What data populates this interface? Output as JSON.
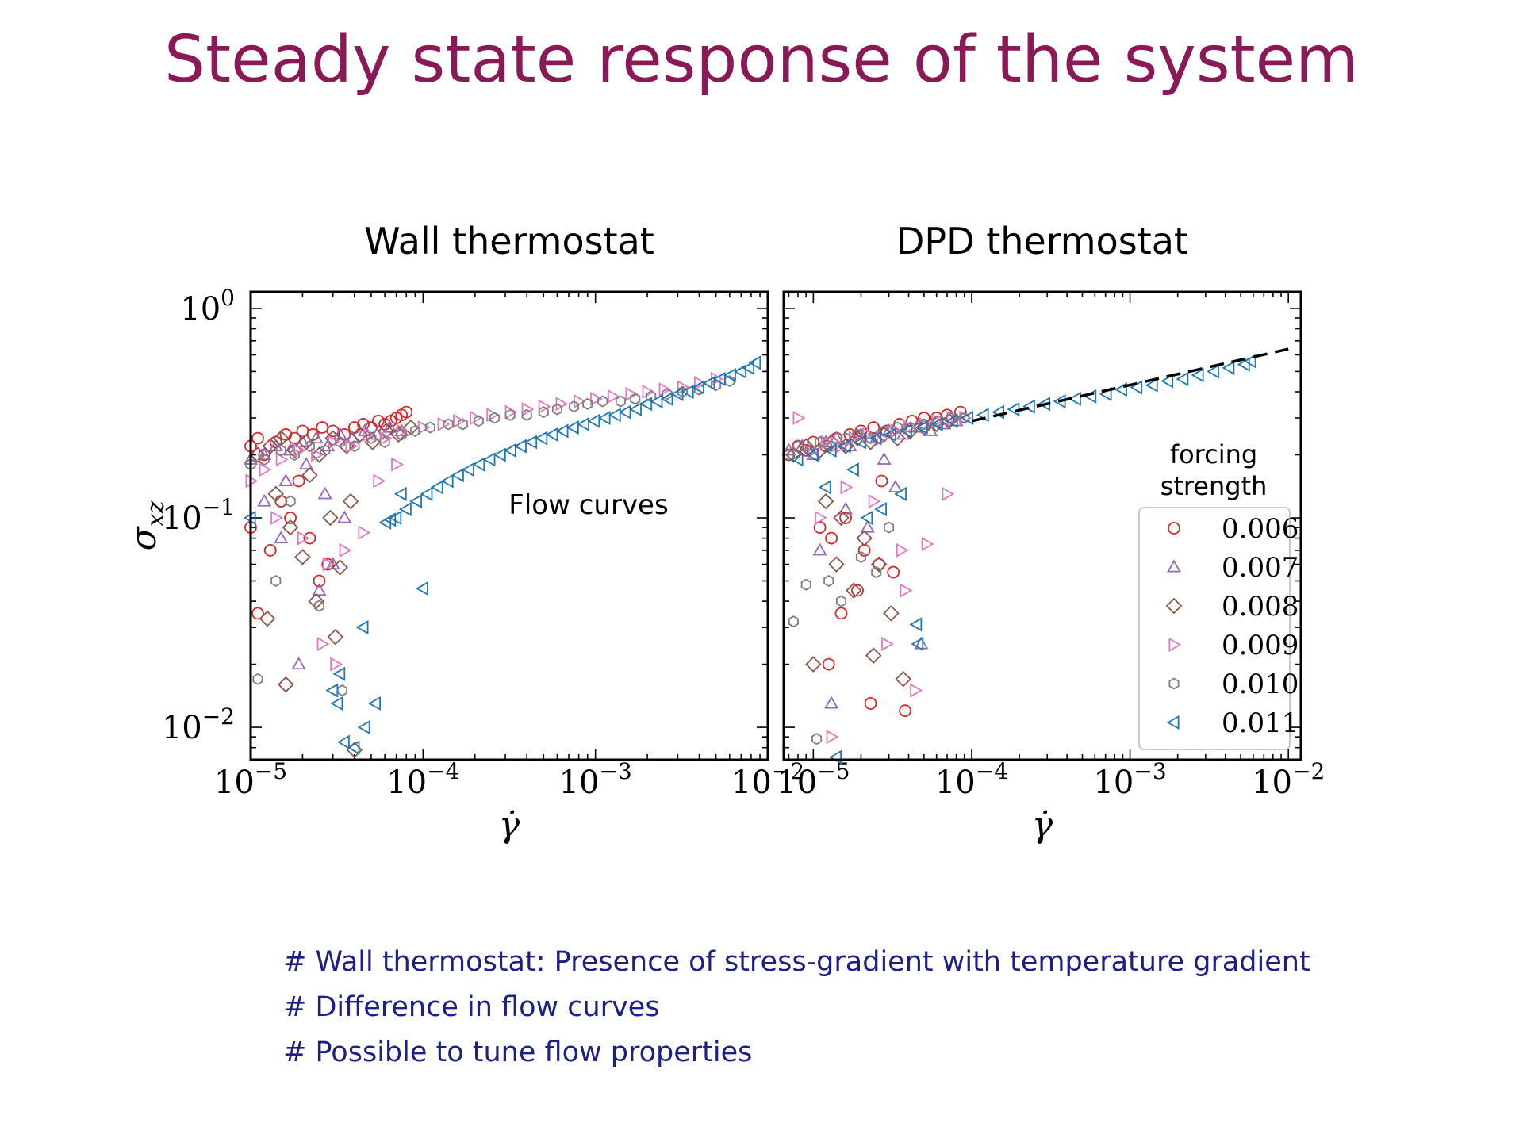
{
  "slide": {
    "title": "Steady state response of the system",
    "notes": [
      "# Wall thermostat: Presence of stress-gradient with temperature gradient",
      "# Difference in flow curves",
      "# Possible to tune flow properties"
    ],
    "note_color": "#1b1f86",
    "title_color": "#8a1a56"
  },
  "chart_data": [
    {
      "type": "scatter",
      "title": "Wall thermostat",
      "annotation": "Flow curves",
      "xlabel": "γ̇",
      "ylabel": "σ_xz",
      "xscale": "log",
      "yscale": "log",
      "xlim": [
        1e-05,
        0.01
      ],
      "ylim": [
        0.007,
        1.2
      ],
      "xticks": [
        "10^-5",
        "10^-4",
        "10^-3",
        "10^-2"
      ],
      "yticks": [
        "10^0",
        "10^-1",
        "10^-2"
      ],
      "legend": null,
      "series": [
        {
          "name": "0.006",
          "marker": "circle",
          "color": "#d62728",
          "x": [
            1e-05,
            1.1e-05,
            1.2e-05,
            1.4e-05,
            1.6e-05,
            1.8e-05,
            2e-05,
            2.3e-05,
            2.6e-05,
            3e-05,
            3.5e-05,
            4e-05,
            4.5e-05,
            5e-05,
            5.5e-05,
            6e-05,
            6.5e-05,
            7e-05,
            7.5e-05,
            8e-05,
            1e-05,
            1.3e-05,
            1.7e-05,
            2.2e-05,
            1.5e-05,
            1.9e-05,
            2.8e-05,
            1.1e-05,
            2.5e-05
          ],
          "y": [
            0.22,
            0.24,
            0.2,
            0.23,
            0.25,
            0.24,
            0.26,
            0.25,
            0.27,
            0.26,
            0.25,
            0.27,
            0.28,
            0.27,
            0.29,
            0.28,
            0.29,
            0.3,
            0.31,
            0.32,
            0.09,
            0.07,
            0.1,
            0.08,
            0.12,
            0.15,
            0.06,
            0.035,
            0.05
          ]
        },
        {
          "name": "0.007",
          "marker": "triangle-up",
          "color": "#9467bd",
          "x": [
            1e-05,
            1.2e-05,
            1.4e-05,
            1.7e-05,
            2e-05,
            2.4e-05,
            2.8e-05,
            3.3e-05,
            3.9e-05,
            4.6e-05,
            5.4e-05,
            6.4e-05,
            7.5e-05,
            1.2e-05,
            1.6e-05,
            2.1e-05,
            2.7e-05,
            3.5e-05,
            1.9e-05,
            2.5e-05,
            3e-05,
            1.5e-05
          ],
          "y": [
            0.19,
            0.2,
            0.22,
            0.21,
            0.23,
            0.24,
            0.22,
            0.25,
            0.24,
            0.26,
            0.25,
            0.27,
            0.26,
            0.12,
            0.15,
            0.18,
            0.13,
            0.1,
            0.02,
            0.045,
            0.06,
            0.08
          ]
        },
        {
          "name": "0.008",
          "marker": "diamond",
          "color": "#8c564b",
          "x": [
            1.1e-05,
            1.3e-05,
            1.5e-05,
            1.8e-05,
            2.1e-05,
            2.5e-05,
            3e-05,
            3.6e-05,
            4.3e-05,
            5.1e-05,
            6.1e-05,
            7.2e-05,
            8.5e-05,
            1.4e-05,
            1.7e-05,
            2.2e-05,
            2.9e-05,
            3.8e-05,
            1.6e-05,
            2.4e-05,
            3.3e-05,
            4e-05,
            1.25e-05,
            2e-05,
            3.1e-05
          ],
          "y": [
            0.2,
            0.22,
            0.24,
            0.21,
            0.23,
            0.2,
            0.24,
            0.22,
            0.25,
            0.23,
            0.26,
            0.25,
            0.27,
            0.13,
            0.09,
            0.16,
            0.1,
            0.12,
            0.016,
            0.04,
            0.058,
            0.0078,
            0.033,
            0.065,
            0.027
          ]
        },
        {
          "name": "0.009",
          "marker": "triangle-right",
          "color": "#e377c2",
          "x": [
            1e-05,
            1.2e-05,
            1.5e-05,
            1.9e-05,
            2.4e-05,
            3e-05,
            3.8e-05,
            4.8e-05,
            6e-05,
            7.5e-05,
            0.0001,
            0.00013,
            0.00016,
            0.0002,
            0.00025,
            0.00032,
            0.0004,
            0.0005,
            0.00063,
            0.0008,
            0.001,
            0.00126,
            0.0016,
            0.002,
            0.0025,
            0.0032,
            0.004,
            0.005,
            1.4e-05,
            2e-05,
            2.8e-05,
            3.5e-05,
            4.5e-05,
            5.5e-05,
            7e-05,
            2.6e-05,
            3.1e-05
          ],
          "y": [
            0.15,
            0.17,
            0.19,
            0.21,
            0.2,
            0.23,
            0.22,
            0.25,
            0.24,
            0.26,
            0.27,
            0.28,
            0.29,
            0.3,
            0.31,
            0.32,
            0.33,
            0.34,
            0.35,
            0.36,
            0.37,
            0.38,
            0.39,
            0.4,
            0.41,
            0.42,
            0.44,
            0.46,
            0.1,
            0.08,
            0.06,
            0.07,
            0.085,
            0.15,
            0.18,
            0.025,
            0.02
          ]
        },
        {
          "name": "0.010",
          "marker": "hexagon",
          "color": "#7f7f7f",
          "x": [
            1e-05,
            1.2e-05,
            1.5e-05,
            1.8e-05,
            2.2e-05,
            2.7e-05,
            3.3e-05,
            4e-05,
            5e-05,
            6e-05,
            7.5e-05,
            9e-05,
            0.00011,
            0.00014,
            0.00017,
            0.00021,
            0.00026,
            0.00032,
            0.0004,
            0.0005,
            0.0006,
            0.00075,
            0.0009,
            0.0011,
            0.0014,
            0.0017,
            0.0021,
            0.0026,
            0.0032,
            0.004,
            0.005,
            0.006,
            1.4e-05,
            2.5e-05,
            3.4e-05,
            1.1e-05,
            1.7e-05
          ],
          "y": [
            0.18,
            0.19,
            0.21,
            0.2,
            0.22,
            0.21,
            0.23,
            0.22,
            0.24,
            0.23,
            0.25,
            0.26,
            0.27,
            0.28,
            0.28,
            0.29,
            0.3,
            0.31,
            0.31,
            0.32,
            0.33,
            0.34,
            0.35,
            0.36,
            0.36,
            0.37,
            0.38,
            0.39,
            0.4,
            0.41,
            0.43,
            0.45,
            0.05,
            0.038,
            0.015,
            0.017,
            0.12
          ]
        },
        {
          "name": "0.011",
          "marker": "triangle-left",
          "color": "#1f77b4",
          "x": [
            1e-05,
            3.2e-05,
            3.5e-05,
            4e-05,
            4.6e-05,
            5.3e-05,
            6.1e-05,
            7e-05,
            8e-05,
            9.2e-05,
            0.000106,
            0.000122,
            0.00014,
            0.000161,
            0.000185,
            0.000213,
            0.000245,
            0.000282,
            0.000324,
            0.000372,
            0.000428,
            0.000492,
            0.000566,
            0.00065,
            0.000748,
            0.00086,
            0.00099,
            0.00114,
            0.00131,
            0.0015,
            0.00173,
            0.00199,
            0.00229,
            0.00263,
            0.00302,
            0.00347,
            0.004,
            0.0046,
            0.0053,
            0.0061,
            0.007,
            0.0078,
            0.0085,
            0.0001,
            6.5e-05,
            7.5e-05,
            3e-05,
            4.5e-05,
            3.3e-05
          ],
          "y": [
            0.1,
            0.013,
            0.0085,
            0.008,
            0.01,
            0.013,
            0.095,
            0.1,
            0.11,
            0.12,
            0.13,
            0.14,
            0.15,
            0.16,
            0.17,
            0.18,
            0.19,
            0.2,
            0.21,
            0.22,
            0.23,
            0.24,
            0.25,
            0.26,
            0.27,
            0.28,
            0.29,
            0.3,
            0.31,
            0.32,
            0.33,
            0.35,
            0.36,
            0.37,
            0.39,
            0.4,
            0.42,
            0.44,
            0.46,
            0.48,
            0.5,
            0.52,
            0.55,
            0.046,
            0.098,
            0.13,
            0.015,
            0.03,
            0.018
          ]
        }
      ]
    },
    {
      "type": "scatter",
      "title": "DPD thermostat",
      "xlabel": "γ̇",
      "ylabel": "",
      "xscale": "log",
      "yscale": "log",
      "xlim": [
        6.5e-06,
        0.012
      ],
      "ylim": [
        0.007,
        1.2
      ],
      "xticks": [
        "10^-5",
        "10^-4",
        "10^-3",
        "10^-2"
      ],
      "yticks": [],
      "legend": {
        "title": "forcing strength",
        "position": "lower-right",
        "entries": [
          "0.006",
          "0.007",
          "0.008",
          "0.009",
          "0.010",
          "0.011"
        ]
      },
      "fit_line": {
        "style": "dashed",
        "color": "#000000",
        "x": [
          0.0001,
          0.01
        ],
        "y": [
          0.29,
          0.64
        ]
      },
      "series": [
        {
          "name": "0.006",
          "marker": "circle",
          "color": "#d62728",
          "x": [
            7e-06,
            8e-06,
            9e-06,
            1e-05,
            1.2e-05,
            1.4e-05,
            1.7e-05,
            2e-05,
            2.4e-05,
            2.9e-05,
            3.5e-05,
            4.2e-05,
            5e-05,
            6e-05,
            7e-05,
            8.5e-05,
            1.1e-05,
            1.3e-05,
            1.6e-05,
            2.1e-05,
            2.6e-05,
            3.2e-05,
            1.5e-05,
            1.9e-05,
            2.3e-05,
            3.8e-05,
            1.25e-05,
            2.7e-05
          ],
          "y": [
            0.2,
            0.22,
            0.21,
            0.23,
            0.22,
            0.24,
            0.25,
            0.26,
            0.27,
            0.26,
            0.28,
            0.29,
            0.3,
            0.3,
            0.31,
            0.32,
            0.09,
            0.08,
            0.1,
            0.07,
            0.06,
            0.055,
            0.035,
            0.045,
            0.013,
            0.012,
            0.02,
            0.15
          ]
        },
        {
          "name": "0.007",
          "marker": "triangle-up",
          "color": "#9467bd",
          "x": [
            7e-06,
            8.5e-06,
            1e-05,
            1.2e-05,
            1.4e-05,
            1.7e-05,
            2e-05,
            2.5e-05,
            3e-05,
            3.7e-05,
            4.5e-05,
            5.5e-05,
            6.7e-05,
            8e-05,
            1.1e-05,
            1.6e-05,
            2.2e-05,
            3.3e-05,
            4.8e-05,
            1.3e-05,
            2.8e-05
          ],
          "y": [
            0.21,
            0.22,
            0.2,
            0.23,
            0.24,
            0.22,
            0.25,
            0.24,
            0.26,
            0.25,
            0.27,
            0.26,
            0.28,
            0.29,
            0.07,
            0.11,
            0.09,
            0.14,
            0.025,
            0.013,
            0.19
          ]
        },
        {
          "name": "0.008",
          "marker": "diamond",
          "color": "#8c564b",
          "x": [
            7.5e-06,
            9e-06,
            1.1e-05,
            1.3e-05,
            1.6e-05,
            1.9e-05,
            2.3e-05,
            2.8e-05,
            3.4e-05,
            4.1e-05,
            5e-05,
            6e-05,
            7.2e-05,
            1.2e-05,
            1.5e-05,
            2.1e-05,
            2.6e-05,
            3.1e-05,
            3.7e-05,
            1e-05,
            1.4e-05,
            1.8e-05,
            2.4e-05
          ],
          "y": [
            0.2,
            0.22,
            0.21,
            0.23,
            0.22,
            0.24,
            0.23,
            0.25,
            0.24,
            0.26,
            0.27,
            0.28,
            0.29,
            0.12,
            0.1,
            0.08,
            0.06,
            0.035,
            0.017,
            0.02,
            0.06,
            0.045,
            0.022
          ]
        },
        {
          "name": "0.009",
          "marker": "triangle-right",
          "color": "#e377c2",
          "x": [
            8e-06,
            1e-05,
            1.2e-05,
            1.5e-05,
            1.8e-05,
            2.2e-05,
            2.7e-05,
            3.3e-05,
            4e-05,
            5e-05,
            6e-05,
            7.5e-05,
            9e-05,
            1.1e-05,
            1.6e-05,
            2.4e-05,
            3.6e-05,
            4.4e-05,
            5.2e-05,
            7e-05,
            1.3e-05,
            2.9e-05,
            3.8e-05
          ],
          "y": [
            0.3,
            0.21,
            0.23,
            0.22,
            0.24,
            0.25,
            0.24,
            0.26,
            0.27,
            0.28,
            0.29,
            0.3,
            0.3,
            0.1,
            0.14,
            0.12,
            0.07,
            0.015,
            0.075,
            0.13,
            0.009,
            0.025,
            0.045
          ]
        },
        {
          "name": "0.010",
          "marker": "hexagon",
          "color": "#7f7f7f",
          "x": [
            7e-06,
            8e-06,
            9.5e-06,
            1.1e-05,
            1.3e-05,
            1.6e-05,
            1.9e-05,
            2.3e-05,
            2.8e-05,
            3.4e-05,
            4.1e-05,
            5e-05,
            6.1e-05,
            7.4e-05,
            9e-05,
            7.5e-06,
            9e-06,
            1.05e-05,
            1.25e-05,
            1.5e-05,
            2e-05,
            2.5e-05,
            3e-05
          ],
          "y": [
            0.2,
            0.22,
            0.21,
            0.23,
            0.22,
            0.24,
            0.25,
            0.24,
            0.26,
            0.27,
            0.27,
            0.28,
            0.29,
            0.3,
            0.3,
            0.032,
            0.048,
            0.0088,
            0.05,
            0.04,
            0.065,
            0.055,
            0.09
          ]
        },
        {
          "name": "0.011",
          "marker": "triangle-left",
          "color": "#1f77b4",
          "x": [
            8e-06,
            1e-05,
            1.3e-05,
            1.6e-05,
            2e-05,
            2.5e-05,
            3.1e-05,
            3.9e-05,
            4.9e-05,
            6.1e-05,
            7.6e-05,
            9.5e-05,
            0.000119,
            0.000149,
            0.000186,
            0.000233,
            0.000291,
            0.000364,
            0.000455,
            0.000569,
            0.000711,
            0.000889,
            0.00111,
            0.00139,
            0.00174,
            0.00217,
            0.00271,
            0.00339,
            0.00424,
            0.0053,
            0.0058,
            1.2e-05,
            1.8e-05,
            2.7e-05,
            4.5e-05,
            1.4e-05,
            2.2e-05,
            3.6e-05,
            4.6e-05
          ],
          "y": [
            0.19,
            0.2,
            0.21,
            0.22,
            0.23,
            0.24,
            0.25,
            0.26,
            0.27,
            0.28,
            0.29,
            0.3,
            0.31,
            0.32,
            0.33,
            0.34,
            0.35,
            0.36,
            0.37,
            0.38,
            0.39,
            0.41,
            0.42,
            0.43,
            0.45,
            0.46,
            0.48,
            0.5,
            0.52,
            0.54,
            0.56,
            0.14,
            0.17,
            0.11,
            0.031,
            0.0072,
            0.1,
            0.13,
            0.025
          ]
        }
      ]
    }
  ]
}
